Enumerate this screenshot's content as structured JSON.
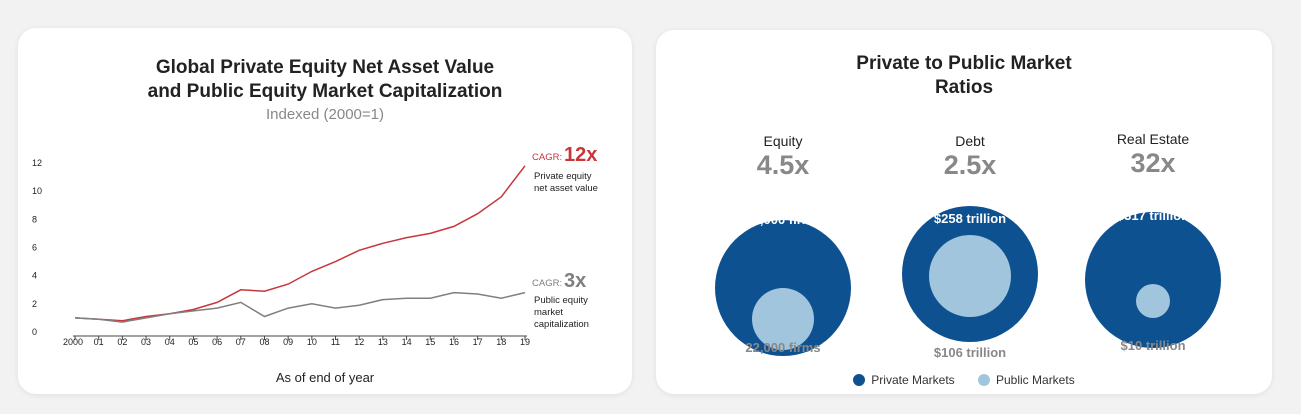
{
  "colors": {
    "private_line": "#c8363b",
    "public_line": "#7f7f7f",
    "private_markets": "#0e5191",
    "public_markets": "#a1c5dd"
  },
  "left_panel": {
    "title_line1": "Global Private Equity Net Asset Value",
    "title_line2": "and Public Equity Market Capitalization",
    "subtitle": "Indexed (2000=1)",
    "x_caption": "As of end of year",
    "private_annotation": {
      "prefix": "CAGR:",
      "value": "12x",
      "label_line1": "Private equity",
      "label_line2": "net asset value"
    },
    "public_annotation": {
      "prefix": "CAGR:",
      "value": "3x",
      "label_line1": "Public equity",
      "label_line2": "market",
      "label_line3": "capitalization"
    }
  },
  "right_panel": {
    "title_line1": "Private to Public Market",
    "title_line2": "Ratios",
    "legend": [
      {
        "label": "Private Markets",
        "color": "#0e5191"
      },
      {
        "label": "Public Markets",
        "color": "#a1c5dd"
      }
    ]
  },
  "chart_data": [
    {
      "type": "line",
      "title": "Global Private Equity Net Asset Value and Public Equity Market Capitalization",
      "subtitle": "Indexed (2000=1)",
      "xlabel": "As of end of year",
      "ylabel": "",
      "categories": [
        "2000",
        "01",
        "02",
        "03",
        "04",
        "05",
        "06",
        "07",
        "08",
        "09",
        "10",
        "11",
        "12",
        "13",
        "14",
        "15",
        "16",
        "17",
        "18",
        "19"
      ],
      "y_ticks": [
        0,
        2,
        4,
        6,
        8,
        10,
        12
      ],
      "ylim": [
        0,
        12.5
      ],
      "grid": false,
      "series": [
        {
          "name": "Private equity net asset value",
          "color": "#c8363b",
          "values": [
            1.0,
            0.9,
            0.8,
            1.1,
            1.3,
            1.6,
            2.1,
            3.0,
            2.9,
            3.4,
            4.3,
            5.0,
            5.8,
            6.3,
            6.7,
            7.0,
            7.5,
            8.4,
            9.6,
            11.8
          ]
        },
        {
          "name": "Public equity market capitalization",
          "color": "#7f7f7f",
          "values": [
            1.0,
            0.9,
            0.7,
            1.0,
            1.3,
            1.5,
            1.7,
            2.1,
            1.1,
            1.7,
            2.0,
            1.7,
            1.9,
            2.3,
            2.4,
            2.4,
            2.8,
            2.7,
            2.4,
            2.8
          ]
        }
      ]
    },
    {
      "type": "bubble",
      "title": "Private to Public Market Ratios",
      "groups": [
        {
          "name": "Equity",
          "ratio": "4.5x",
          "private_label": "98,000 firms",
          "public_label": "22,000 firms",
          "public_to_private_size": 0.45
        },
        {
          "name": "Debt",
          "ratio": "2.5x",
          "private_label": "$258 trillion",
          "public_label": "$106 trillion",
          "public_to_private_size": 0.6
        },
        {
          "name": "Real Estate",
          "ratio": "32x",
          "private_label": "$317 trillion",
          "public_label": "$10 trillion",
          "public_to_private_size": 0.26
        }
      ]
    }
  ]
}
